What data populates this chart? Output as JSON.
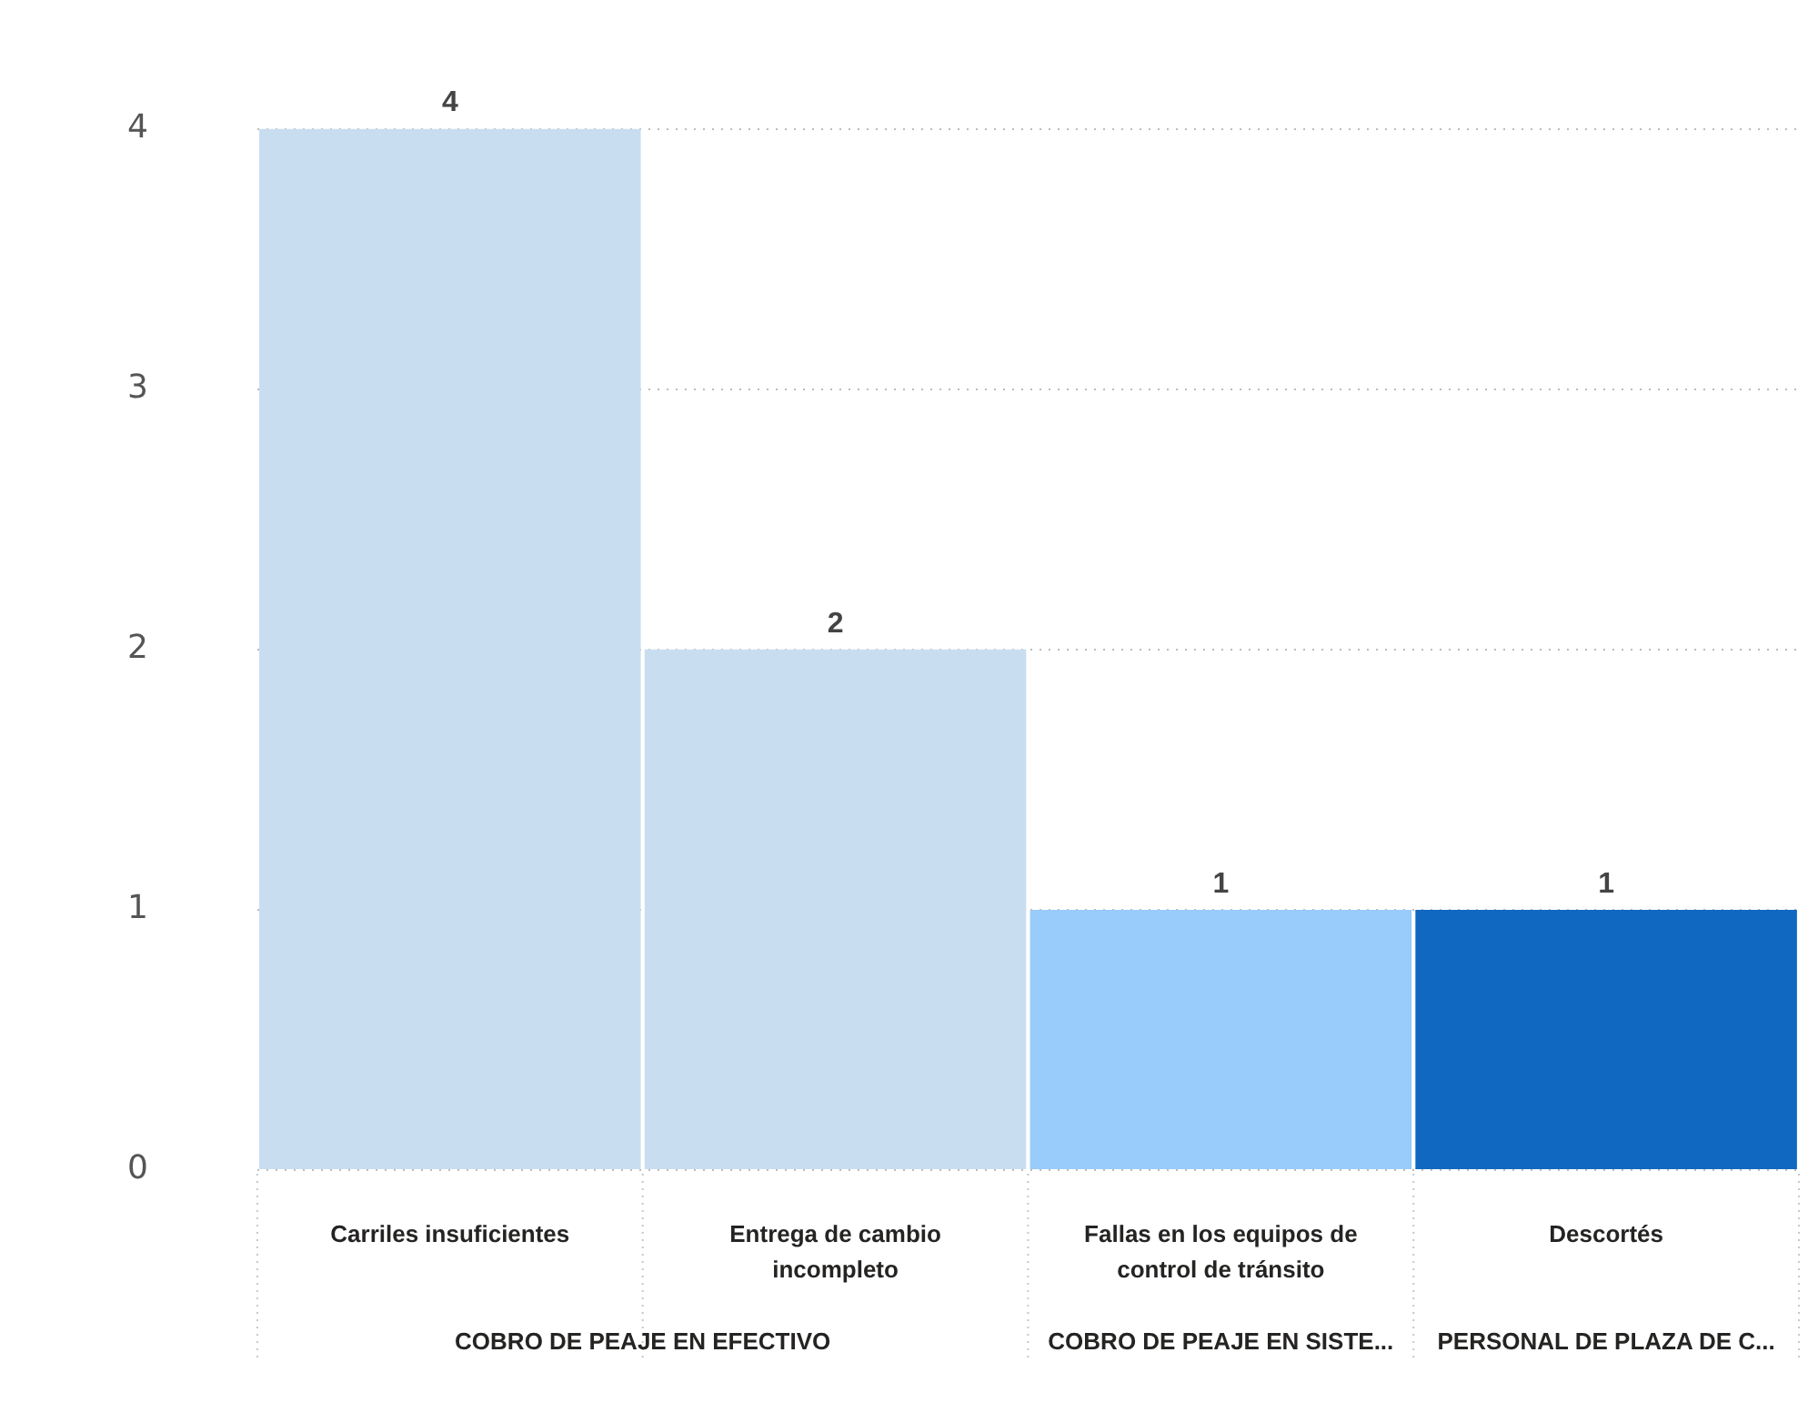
{
  "chart_data": {
    "type": "bar",
    "categories": [
      "Carriles insuficientes",
      "Entrega de cambio incompleto",
      "Fallas en los equipos de control de tránsito",
      "Descortés"
    ],
    "values": [
      4,
      2,
      1,
      1
    ],
    "colors": [
      "#c9ddf0",
      "#c9ddf0",
      "#99cbfb",
      "#1068c0"
    ],
    "ylim": [
      0,
      4
    ],
    "yticks": [
      0,
      1,
      2,
      3,
      4
    ],
    "grid": "y",
    "data_labels": true,
    "legend": false,
    "annotations": [
      "COBRO DE PEAJE EN EFECTIVO",
      "COBRO DE PEAJE EN SISTE...",
      "PERSONAL DE PLAZA DE C..."
    ]
  }
}
